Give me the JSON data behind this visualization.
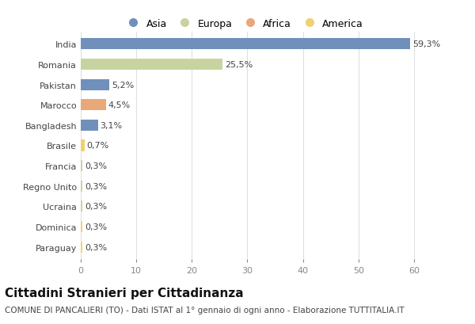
{
  "categories": [
    "India",
    "Romania",
    "Pakistan",
    "Marocco",
    "Bangladesh",
    "Brasile",
    "Francia",
    "Regno Unito",
    "Ucraina",
    "Dominica",
    "Paraguay"
  ],
  "values": [
    59.3,
    25.5,
    5.2,
    4.5,
    3.1,
    0.7,
    0.3,
    0.3,
    0.3,
    0.3,
    0.3
  ],
  "colors": [
    "#7090bb",
    "#c8d4a0",
    "#7090bb",
    "#e8a878",
    "#7090bb",
    "#f0d070",
    "#c8d4a0",
    "#c8d4a0",
    "#c8d4a0",
    "#f0d070",
    "#f0d070"
  ],
  "labels": [
    "59,3%",
    "25,5%",
    "5,2%",
    "4,5%",
    "3,1%",
    "0,7%",
    "0,3%",
    "0,3%",
    "0,3%",
    "0,3%",
    "0,3%"
  ],
  "xlim": [
    0,
    65
  ],
  "xticks": [
    0,
    10,
    20,
    30,
    40,
    50,
    60
  ],
  "title": "Cittadini Stranieri per Cittadinanza",
  "subtitle": "COMUNE DI PANCALIERI (TO) - Dati ISTAT al 1° gennaio di ogni anno - Elaborazione TUTTITALIA.IT",
  "legend_labels": [
    "Asia",
    "Europa",
    "Africa",
    "America"
  ],
  "legend_colors": [
    "#7090bb",
    "#c8d4a0",
    "#e8a878",
    "#f0d070"
  ],
  "bg_color": "#ffffff",
  "plot_bg_color": "#ffffff",
  "grid_color": "#e0e0e0",
  "bar_height": 0.55,
  "title_fontsize": 11,
  "subtitle_fontsize": 7.5,
  "label_fontsize": 8,
  "tick_fontsize": 8,
  "legend_fontsize": 9
}
